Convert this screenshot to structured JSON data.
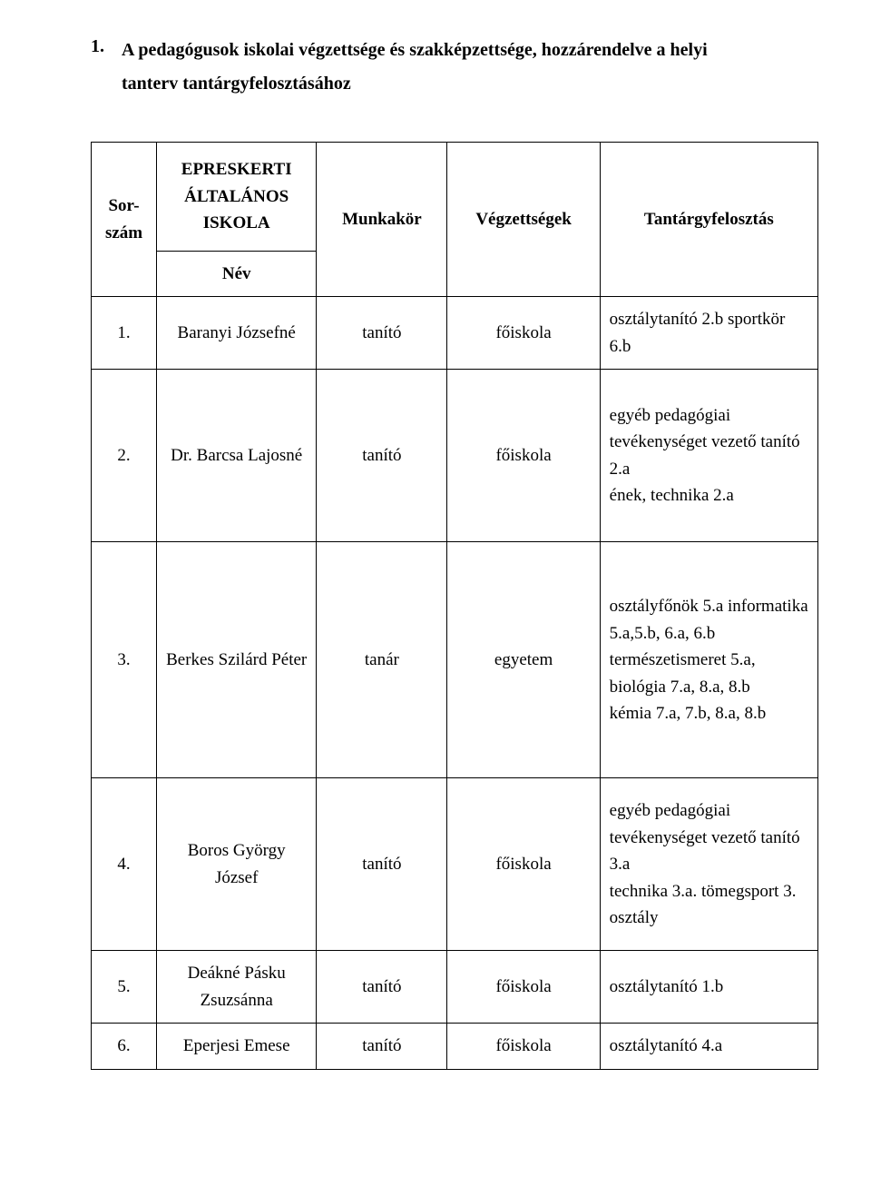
{
  "heading": {
    "number": "1.",
    "line1": "A  pedagógusok  iskolai  végzettsége  és  szakképzettsége,  hozzárendelve  a  helyi",
    "line2": "tanterv tantárgyfelosztásához"
  },
  "headers": {
    "sorszam": "Sor-szám",
    "nev_top": "EPRESKERTI ÁLTALÁNOS ISKOLA",
    "nev_bottom": "Név",
    "munkakor": "Munkakör",
    "vegzettsegek": "Végzettségek",
    "tantargy": "Tantárgyfelosztás"
  },
  "rows": [
    {
      "num": "1.",
      "name": "Baranyi Józsefné",
      "munk": "tanító",
      "vegz": "főiskola",
      "tant": "osztálytanító 2.b sportkör 6.b"
    },
    {
      "num": "2.",
      "name": "Dr. Barcsa Lajosné",
      "munk": "tanító",
      "vegz": "főiskola",
      "tant": "egyéb pedagógiai tevékenységet vezető tanító 2.a\nének, technika 2.a"
    },
    {
      "num": "3.",
      "name": "Berkes Szilárd Péter",
      "munk": "tanár",
      "vegz": "egyetem",
      "tant": "osztályfőnök 5.a informatika 5.a,5.b, 6.a, 6.b természetismeret 5.a, biológia 7.a, 8.a, 8.b\n kémia 7.a, 7.b, 8.a, 8.b"
    },
    {
      "num": "4.",
      "name": "Boros György József",
      "munk": "tanító",
      "vegz": "főiskola",
      "tant": "egyéb pedagógiai tevékenységet vezető tanító 3.a\ntechnika 3.a. tömegsport 3. osztály"
    },
    {
      "num": "5.",
      "name": "Deákné Pásku Zsuzsánna",
      "munk": "tanító",
      "vegz": "főiskola",
      "tant": "osztálytanító 1.b"
    },
    {
      "num": "6.",
      "name": "Eperjesi Emese",
      "munk": "tanító",
      "vegz": "főiskola",
      "tant": "osztálytanító 4.a"
    }
  ],
  "colors": {
    "text": "#000000",
    "background": "#ffffff",
    "border": "#000000"
  },
  "fonts": {
    "family": "Times New Roman",
    "heading_size_pt": 15,
    "body_size_pt": 14
  }
}
